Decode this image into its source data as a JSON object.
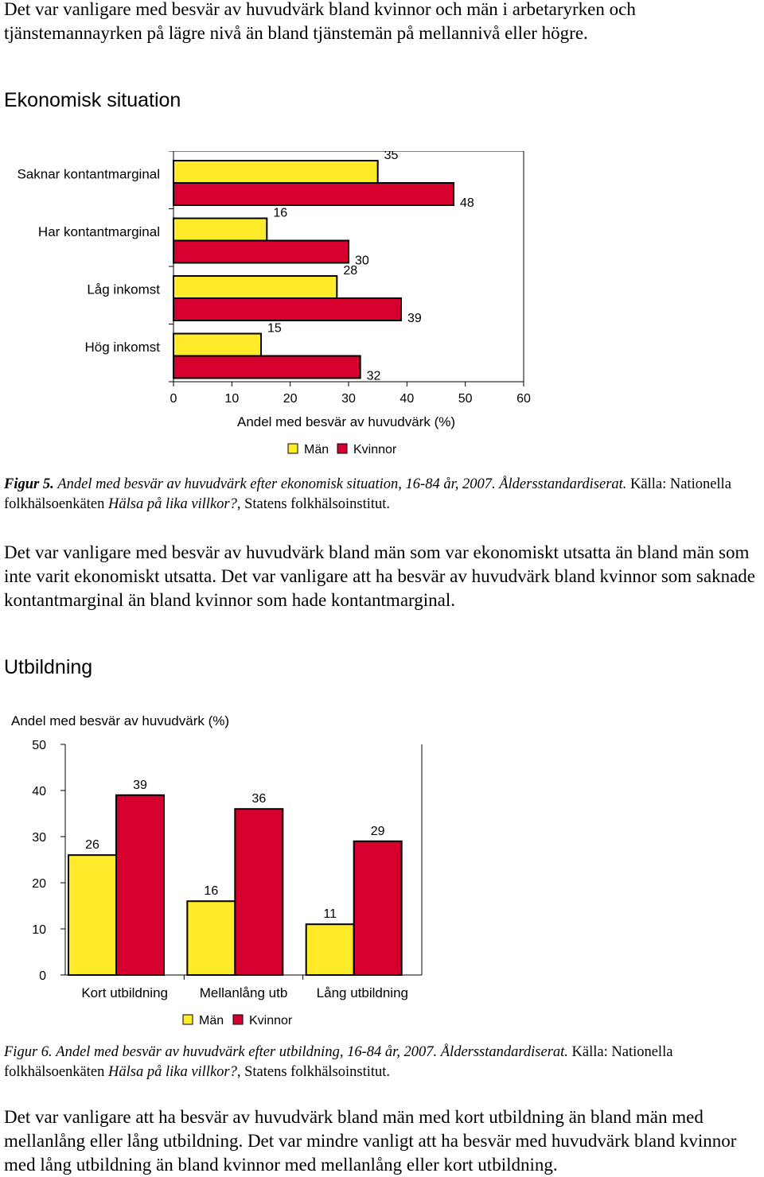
{
  "intro_paragraph": "Det var vanligare med besvär av huvudvärk bland kvinnor och män i arbetaryrken och tjänstemannayrken på lägre nivå än bland tjänstemän på mellannivå eller högre.",
  "section1_heading": "Ekonomisk situation",
  "figure5": {
    "caption_label": "Figur 5.",
    "caption_title": "Andel med besvär av huvudvärk efter ekonomisk situation, 16-84 år, 2007. Åldersstandardiserat.",
    "caption_source_prefix": "Källa: Nationella folkhälsoenkäten",
    "caption_source_italic": "Hälsa på lika villkor?",
    "caption_source_suffix": ", Statens folkhälsoinstitut."
  },
  "paragraph2": "Det var vanligare med besvär av huvudvärk bland män som var ekonomiskt utsatta än bland män som inte varit ekonomiskt utsatta. Det var vanligare att ha besvär av huvudvärk bland kvinnor som saknade kontantmarginal än bland kvinnor som hade kontantmarginal.",
  "section2_heading": "Utbildning",
  "figure6": {
    "caption_label": "Figur 6.",
    "caption_title": "Andel med besvär av huvudvärk efter utbildning, 16-84 år, 2007. Åldersstandardiserat.",
    "caption_source_prefix": "Källa: Nationella folkhälsoenkäten",
    "caption_source_italic": "Hälsa på lika villkor?",
    "caption_source_suffix": ", Statens folkhälsoinstitut."
  },
  "paragraph3": "Det var vanligare att ha besvär av huvudvärk bland män med kort utbildning än bland män med mellanlång eller lång utbildning. Det var mindre vanligt att ha besvär med huvudvärk bland kvinnor med lång utbildning än bland kvinnor med mellanlång eller kort utbildning.",
  "colors": {
    "man": "#FFEB2A",
    "kvinnor": "#D6002E",
    "stroke": "#000000"
  },
  "chart_data": [
    {
      "type": "bar",
      "orientation": "horizontal",
      "categories": [
        "Saknar kontantmarginal",
        "Har kontantmarginal",
        "Låg inkomst",
        "Hög inkomst"
      ],
      "series": [
        {
          "name": "Män",
          "values": [
            35,
            16,
            28,
            15
          ]
        },
        {
          "name": "Kvinnor",
          "values": [
            48,
            30,
            39,
            32
          ]
        }
      ],
      "xlabel": "Andel med besvär av  huvudvärk (%)",
      "xlim": [
        0,
        60
      ],
      "xticks": [
        "0",
        "10",
        "20",
        "30",
        "40",
        "50",
        "60"
      ],
      "legend": "bottom"
    },
    {
      "type": "bar",
      "orientation": "vertical",
      "categories": [
        "Kort utbildning",
        "Mellanlång utb",
        "Lång utbildning"
      ],
      "series": [
        {
          "name": "Män",
          "values": [
            26,
            16,
            11
          ]
        },
        {
          "name": "Kvinnor",
          "values": [
            39,
            36,
            29
          ]
        }
      ],
      "ylabel": "Andel med besvär av huvudvärk  (%)",
      "ylim": [
        0,
        50
      ],
      "yticks": [
        "0",
        "10",
        "20",
        "30",
        "40",
        "50"
      ],
      "legend": "bottom"
    }
  ]
}
